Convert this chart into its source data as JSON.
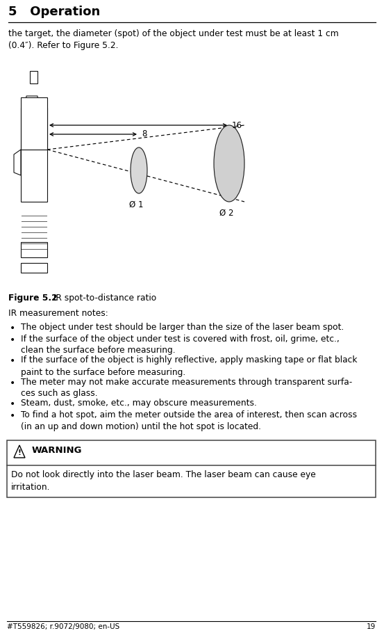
{
  "title": "5   Operation",
  "intro_text": "the target, the diameter (spot) of the object under test must be at least 1 cm\n(0.4″). Refer to Figure 5.2.",
  "figure_caption_bold": "Figure 5.2",
  "figure_caption_normal": "  IR spot-to-distance ratio",
  "ir_notes_title": "IR measurement notes:",
  "bullet_points": [
    "The object under test should be larger than the size of the laser beam spot.",
    "If the surface of the object under test is covered with frost, oil, grime, etc.,\nclean the surface before measuring.",
    "If the surface of the object is highly reflective, apply masking tape or flat black\npaint to the surface before measuring.",
    "The meter may not make accurate measurements through transparent surfa-\nces such as glass.",
    "Steam, dust, smoke, etc., may obscure measurements.",
    "To find a hot spot, aim the meter outside the area of interest, then scan across\n(in an up and down motion) until the hot spot is located."
  ],
  "warning_title": "WARNING",
  "warning_text": "Do not look directly into the laser beam. The laser beam can cause eye\nirritation.",
  "footer_text": "#T559826; r.9072/9080; en-US",
  "footer_page": "19",
  "bg_color": "#ffffff",
  "text_color": "#000000",
  "diagram_label_8": "8",
  "diagram_label_16": "16",
  "diagram_label_d1": "Ø 1",
  "diagram_label_d2": "Ø 2",
  "title_fontsize": 13,
  "body_fontsize": 8.8,
  "caption_fontsize": 8.8,
  "bullet_fontsize": 8.8
}
